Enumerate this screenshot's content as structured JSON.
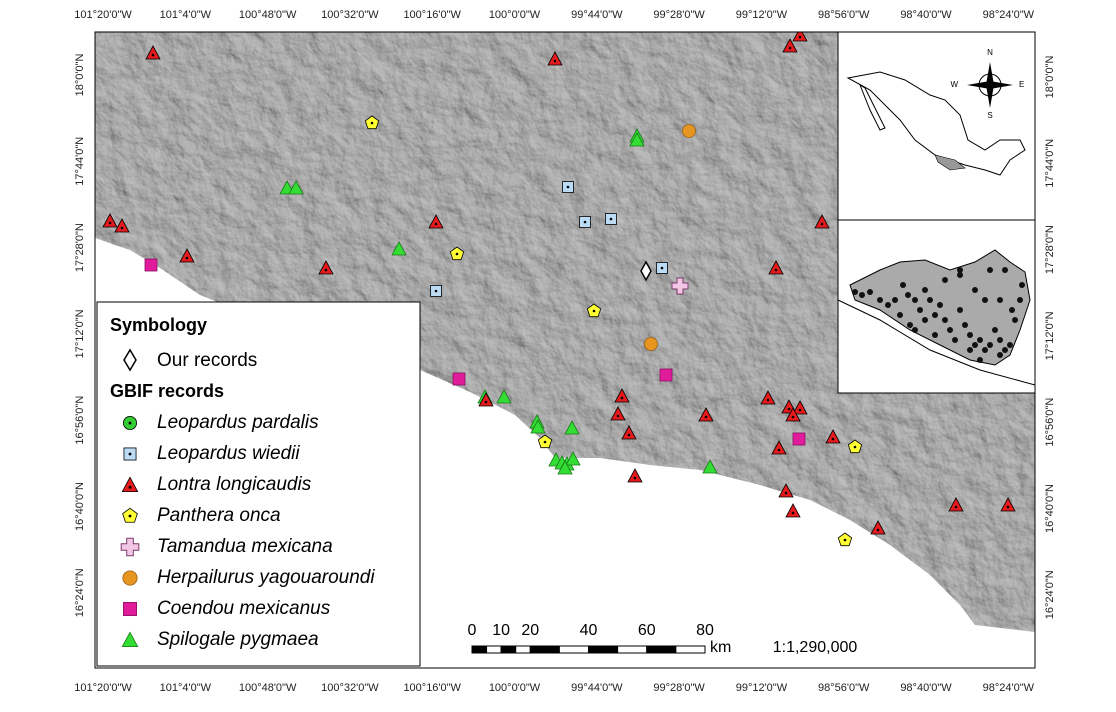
{
  "map": {
    "top_labels": [
      "101°20'0\"W",
      "101°4'0\"W",
      "100°48'0\"W",
      "100°32'0\"W",
      "100°16'0\"W",
      "100°0'0\"W",
      "99°44'0\"W",
      "99°28'0\"W",
      "99°12'0\"W",
      "98°56'0\"W",
      "98°40'0\"W",
      "98°24'0\"W"
    ],
    "bottom_labels": [
      "101°20'0\"W",
      "101°4'0\"W",
      "100°48'0\"W",
      "100°32'0\"W",
      "100°16'0\"W",
      "100°0'0\"W",
      "99°44'0\"W",
      "99°28'0\"W",
      "99°12'0\"W",
      "98°56'0\"W",
      "98°40'0\"W",
      "98°24'0\"W"
    ],
    "left_labels": [
      "18°0'0\"N",
      "17°44'0\"N",
      "17°28'0\"N",
      "17°12'0\"N",
      "16°56'0\"N",
      "16°40'0\"N",
      "16°24'0\"N"
    ],
    "right_labels": [
      "18°0'0\"N",
      "17°44'0\"N",
      "17°28'0\"N",
      "17°12'0\"N",
      "16°56'0\"N",
      "16°40'0\"N",
      "16°24'0\"N"
    ]
  },
  "legend": {
    "title": "Symbology",
    "our_records": "Our records",
    "gbif_title": "GBIF records",
    "species": [
      "Leopardus pardalis",
      "Leopardus wiedii",
      "Lontra longicaudis",
      "Panthera onca",
      "Tamandua mexicana",
      "Herpailurus yagouaroundi",
      "Coendou mexicanus",
      "Spilogale pygmaea"
    ]
  },
  "scale_bar": {
    "ticks": [
      0,
      10,
      20,
      40,
      60,
      80
    ],
    "unit": "km",
    "ratio": "1:1,290,000"
  },
  "compass": {
    "n": "N",
    "s": "S",
    "e": "E",
    "w": "W"
  }
}
